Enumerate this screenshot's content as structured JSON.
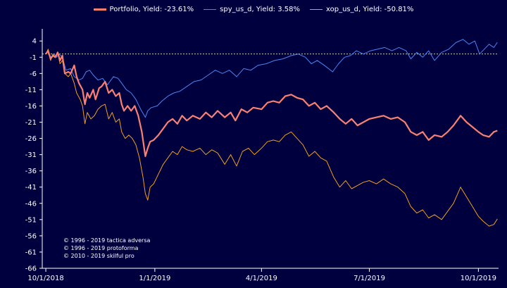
{
  "chart_data": {
    "type": "line",
    "title": "",
    "xlabel": "",
    "ylabel": "",
    "ylim": [
      -66,
      6
    ],
    "yticks": [
      4,
      -1,
      -6,
      -11,
      -16,
      -21,
      -26,
      -31,
      -36,
      -41,
      -46,
      -51,
      -56,
      -61,
      -66
    ],
    "xticks": [
      "10/1/2018",
      "1/1/2019",
      "4/1/2019",
      "7/1/2019",
      "10/1/2019"
    ],
    "xrange": [
      "2018-09-28",
      "2019-10-18"
    ],
    "reference_line_y": 0,
    "grid": false,
    "legend_position": "top",
    "series": [
      {
        "name": "Portfolio, Yield: -23.61%",
        "color": "#fa8072",
        "width": 2.2,
        "points": [
          [
            "2018-10-01",
            0
          ],
          [
            "2018-10-03",
            1
          ],
          [
            "2018-10-05",
            -1.5
          ],
          [
            "2018-10-07",
            -0.5
          ],
          [
            "2018-10-09",
            -1
          ],
          [
            "2018-10-11",
            0.5
          ],
          [
            "2018-10-13",
            -2
          ],
          [
            "2018-10-15",
            -0.5
          ],
          [
            "2018-10-17",
            -6
          ],
          [
            "2018-10-20",
            -5.5
          ],
          [
            "2018-10-22",
            -6
          ],
          [
            "2018-10-25",
            -3.5
          ],
          [
            "2018-10-27",
            -7
          ],
          [
            "2018-10-29",
            -9
          ],
          [
            "2018-11-01",
            -11
          ],
          [
            "2018-11-03",
            -15.5
          ],
          [
            "2018-11-05",
            -12
          ],
          [
            "2018-11-07",
            -13.5
          ],
          [
            "2018-11-10",
            -11
          ],
          [
            "2018-11-12",
            -14
          ],
          [
            "2018-11-15",
            -10.5
          ],
          [
            "2018-11-17",
            -10
          ],
          [
            "2018-11-20",
            -8.5
          ],
          [
            "2018-11-23",
            -12
          ],
          [
            "2018-11-26",
            -11
          ],
          [
            "2018-11-29",
            -13
          ],
          [
            "2018-12-02",
            -12
          ],
          [
            "2018-12-04",
            -15.5
          ],
          [
            "2018-12-06",
            -17.5
          ],
          [
            "2018-12-09",
            -16
          ],
          [
            "2018-12-12",
            -17.5
          ],
          [
            "2018-12-15",
            -16
          ],
          [
            "2018-12-18",
            -19
          ],
          [
            "2018-12-21",
            -24
          ],
          [
            "2018-12-24",
            -31.5
          ],
          [
            "2018-12-26",
            -29
          ],
          [
            "2018-12-28",
            -27
          ],
          [
            "2018-12-31",
            -26.5
          ],
          [
            "2019-01-04",
            -25
          ],
          [
            "2019-01-08",
            -23
          ],
          [
            "2019-01-12",
            -21
          ],
          [
            "2019-01-16",
            -20
          ],
          [
            "2019-01-20",
            -21.5
          ],
          [
            "2019-01-24",
            -19
          ],
          [
            "2019-01-28",
            -20.5
          ],
          [
            "2019-02-02",
            -19
          ],
          [
            "2019-02-08",
            -20
          ],
          [
            "2019-02-13",
            -18
          ],
          [
            "2019-02-18",
            -19.5
          ],
          [
            "2019-02-23",
            -17.5
          ],
          [
            "2019-03-01",
            -19.5
          ],
          [
            "2019-03-06",
            -18
          ],
          [
            "2019-03-10",
            -20.5
          ],
          [
            "2019-03-15",
            -17
          ],
          [
            "2019-03-20",
            -18
          ],
          [
            "2019-03-25",
            -16.5
          ],
          [
            "2019-04-01",
            -17
          ],
          [
            "2019-04-06",
            -15
          ],
          [
            "2019-04-11",
            -14.5
          ],
          [
            "2019-04-16",
            -15
          ],
          [
            "2019-04-21",
            -13
          ],
          [
            "2019-04-26",
            -12.5
          ],
          [
            "2019-05-01",
            -13.5
          ],
          [
            "2019-05-06",
            -14
          ],
          [
            "2019-05-11",
            -16
          ],
          [
            "2019-05-16",
            -15
          ],
          [
            "2019-05-21",
            -17
          ],
          [
            "2019-05-26",
            -16
          ],
          [
            "2019-06-01",
            -18
          ],
          [
            "2019-06-06",
            -20
          ],
          [
            "2019-06-11",
            -21.5
          ],
          [
            "2019-06-16",
            -20
          ],
          [
            "2019-06-21",
            -22
          ],
          [
            "2019-06-26",
            -21
          ],
          [
            "2019-07-01",
            -20
          ],
          [
            "2019-07-07",
            -19.5
          ],
          [
            "2019-07-13",
            -19
          ],
          [
            "2019-07-19",
            -20
          ],
          [
            "2019-07-25",
            -19.5
          ],
          [
            "2019-07-31",
            -21
          ],
          [
            "2019-08-05",
            -24
          ],
          [
            "2019-08-10",
            -25
          ],
          [
            "2019-08-15",
            -24
          ],
          [
            "2019-08-20",
            -26.5
          ],
          [
            "2019-08-25",
            -25
          ],
          [
            "2019-08-31",
            -25.5
          ],
          [
            "2019-09-05",
            -24
          ],
          [
            "2019-09-10",
            -22
          ],
          [
            "2019-09-16",
            -19
          ],
          [
            "2019-09-21",
            -21
          ],
          [
            "2019-09-26",
            -22.5
          ],
          [
            "2019-10-01",
            -24
          ],
          [
            "2019-10-05",
            -25
          ],
          [
            "2019-10-10",
            -25.5
          ],
          [
            "2019-10-14",
            -24
          ],
          [
            "2019-10-17",
            -23.6
          ]
        ]
      },
      {
        "name": "spy_us_d, Yield: 3.58%",
        "color": "#4b86f0",
        "width": 1,
        "points": [
          [
            "2018-10-01",
            0
          ],
          [
            "2018-10-03",
            1
          ],
          [
            "2018-10-05",
            -1
          ],
          [
            "2018-10-08",
            0
          ],
          [
            "2018-10-10",
            -1
          ],
          [
            "2018-10-12",
            0
          ],
          [
            "2018-10-15",
            -1
          ],
          [
            "2018-10-18",
            -5
          ],
          [
            "2018-10-22",
            -4.5
          ],
          [
            "2018-10-25",
            -7
          ],
          [
            "2018-10-29",
            -8
          ],
          [
            "2018-11-01",
            -7.5
          ],
          [
            "2018-11-04",
            -5.5
          ],
          [
            "2018-11-07",
            -5
          ],
          [
            "2018-11-10",
            -6.5
          ],
          [
            "2018-11-14",
            -8
          ],
          [
            "2018-11-18",
            -7.5
          ],
          [
            "2018-11-22",
            -9.5
          ],
          [
            "2018-11-27",
            -7
          ],
          [
            "2018-12-01",
            -7.5
          ],
          [
            "2018-12-04",
            -9
          ],
          [
            "2018-12-08",
            -11
          ],
          [
            "2018-12-12",
            -12
          ],
          [
            "2018-12-16",
            -14
          ],
          [
            "2018-12-20",
            -17
          ],
          [
            "2018-12-24",
            -19.5
          ],
          [
            "2018-12-26",
            -17.5
          ],
          [
            "2018-12-29",
            -16.5
          ],
          [
            "2019-01-03",
            -16
          ],
          [
            "2019-01-07",
            -14.5
          ],
          [
            "2019-01-12",
            -13
          ],
          [
            "2019-01-17",
            -12
          ],
          [
            "2019-01-22",
            -11.5
          ],
          [
            "2019-01-28",
            -10
          ],
          [
            "2019-02-03",
            -8.5
          ],
          [
            "2019-02-09",
            -8
          ],
          [
            "2019-02-15",
            -6.5
          ],
          [
            "2019-02-21",
            -5
          ],
          [
            "2019-02-27",
            -6
          ],
          [
            "2019-03-05",
            -5
          ],
          [
            "2019-03-11",
            -7
          ],
          [
            "2019-03-17",
            -4.5
          ],
          [
            "2019-03-23",
            -5
          ],
          [
            "2019-03-29",
            -3.5
          ],
          [
            "2019-04-05",
            -3
          ],
          [
            "2019-04-12",
            -2
          ],
          [
            "2019-04-19",
            -1.5
          ],
          [
            "2019-04-26",
            -0.5
          ],
          [
            "2019-05-02",
            0
          ],
          [
            "2019-05-08",
            -1
          ],
          [
            "2019-05-13",
            -3
          ],
          [
            "2019-05-18",
            -2
          ],
          [
            "2019-05-24",
            -3.5
          ],
          [
            "2019-05-31",
            -5.5
          ],
          [
            "2019-06-05",
            -3
          ],
          [
            "2019-06-10",
            -1
          ],
          [
            "2019-06-15",
            -0.5
          ],
          [
            "2019-06-20",
            1
          ],
          [
            "2019-06-26",
            0
          ],
          [
            "2019-07-02",
            1
          ],
          [
            "2019-07-08",
            1.5
          ],
          [
            "2019-07-14",
            2
          ],
          [
            "2019-07-20",
            1
          ],
          [
            "2019-07-26",
            2
          ],
          [
            "2019-08-01",
            1
          ],
          [
            "2019-08-05",
            -1.5
          ],
          [
            "2019-08-10",
            0.5
          ],
          [
            "2019-08-15",
            -1
          ],
          [
            "2019-08-20",
            1
          ],
          [
            "2019-08-25",
            -2
          ],
          [
            "2019-08-31",
            0.5
          ],
          [
            "2019-09-06",
            1.5
          ],
          [
            "2019-09-12",
            3.5
          ],
          [
            "2019-09-18",
            4.5
          ],
          [
            "2019-09-23",
            3
          ],
          [
            "2019-09-28",
            4
          ],
          [
            "2019-10-02",
            0
          ],
          [
            "2019-10-06",
            1.5
          ],
          [
            "2019-10-10",
            3
          ],
          [
            "2019-10-14",
            2
          ],
          [
            "2019-10-17",
            3.6
          ]
        ]
      },
      {
        "name": "xop_us_d, Yield: -50.81%",
        "color": "#f0a020",
        "width": 1,
        "points": [
          [
            "2018-10-01",
            0
          ],
          [
            "2018-10-03",
            1.5
          ],
          [
            "2018-10-05",
            -2
          ],
          [
            "2018-10-07",
            0
          ],
          [
            "2018-10-09",
            -1
          ],
          [
            "2018-10-11",
            0.5
          ],
          [
            "2018-10-13",
            -3
          ],
          [
            "2018-10-15",
            -2
          ],
          [
            "2018-10-17",
            -6
          ],
          [
            "2018-10-20",
            -7
          ],
          [
            "2018-10-22",
            -6
          ],
          [
            "2018-10-25",
            -9
          ],
          [
            "2018-10-27",
            -12
          ],
          [
            "2018-10-30",
            -14
          ],
          [
            "2018-11-01",
            -16
          ],
          [
            "2018-11-03",
            -21.5
          ],
          [
            "2018-11-05",
            -18
          ],
          [
            "2018-11-08",
            -20
          ],
          [
            "2018-11-11",
            -19
          ],
          [
            "2018-11-14",
            -17
          ],
          [
            "2018-11-17",
            -16
          ],
          [
            "2018-11-20",
            -15.5
          ],
          [
            "2018-11-23",
            -20
          ],
          [
            "2018-11-26",
            -18
          ],
          [
            "2018-11-29",
            -21
          ],
          [
            "2018-12-02",
            -20
          ],
          [
            "2018-12-04",
            -24
          ],
          [
            "2018-12-07",
            -26
          ],
          [
            "2018-12-10",
            -25
          ],
          [
            "2018-12-13",
            -26
          ],
          [
            "2018-12-16",
            -28
          ],
          [
            "2018-12-19",
            -32
          ],
          [
            "2018-12-22",
            -38
          ],
          [
            "2018-12-24",
            -43
          ],
          [
            "2018-12-26",
            -45
          ],
          [
            "2018-12-28",
            -41
          ],
          [
            "2018-12-31",
            -40
          ],
          [
            "2019-01-04",
            -37
          ],
          [
            "2019-01-08",
            -34
          ],
          [
            "2019-01-12",
            -32
          ],
          [
            "2019-01-16",
            -30
          ],
          [
            "2019-01-20",
            -31
          ],
          [
            "2019-01-24",
            -28.5
          ],
          [
            "2019-01-28",
            -29.5
          ],
          [
            "2019-02-02",
            -30
          ],
          [
            "2019-02-08",
            -29
          ],
          [
            "2019-02-13",
            -31
          ],
          [
            "2019-02-18",
            -29.5
          ],
          [
            "2019-02-23",
            -30.5
          ],
          [
            "2019-03-01",
            -34
          ],
          [
            "2019-03-06",
            -31
          ],
          [
            "2019-03-11",
            -34.5
          ],
          [
            "2019-03-16",
            -30
          ],
          [
            "2019-03-21",
            -29
          ],
          [
            "2019-03-26",
            -31
          ],
          [
            "2019-04-01",
            -29
          ],
          [
            "2019-04-06",
            -27
          ],
          [
            "2019-04-11",
            -26.5
          ],
          [
            "2019-04-16",
            -27
          ],
          [
            "2019-04-21",
            -25
          ],
          [
            "2019-04-26",
            -24
          ],
          [
            "2019-05-01",
            -26
          ],
          [
            "2019-05-06",
            -28
          ],
          [
            "2019-05-11",
            -31.5
          ],
          [
            "2019-05-16",
            -30
          ],
          [
            "2019-05-21",
            -32
          ],
          [
            "2019-05-26",
            -33
          ],
          [
            "2019-06-01",
            -38
          ],
          [
            "2019-06-06",
            -41
          ],
          [
            "2019-06-11",
            -39
          ],
          [
            "2019-06-16",
            -41.5
          ],
          [
            "2019-06-21",
            -40.5
          ],
          [
            "2019-06-26",
            -39.5
          ],
          [
            "2019-07-01",
            -39
          ],
          [
            "2019-07-07",
            -40
          ],
          [
            "2019-07-13",
            -38.5
          ],
          [
            "2019-07-19",
            -40
          ],
          [
            "2019-07-25",
            -41
          ],
          [
            "2019-07-31",
            -43
          ],
          [
            "2019-08-05",
            -47
          ],
          [
            "2019-08-10",
            -49
          ],
          [
            "2019-08-15",
            -48
          ],
          [
            "2019-08-20",
            -50.5
          ],
          [
            "2019-08-25",
            -49.5
          ],
          [
            "2019-08-31",
            -51
          ],
          [
            "2019-09-05",
            -48.5
          ],
          [
            "2019-09-10",
            -46
          ],
          [
            "2019-09-16",
            -41
          ],
          [
            "2019-09-21",
            -44
          ],
          [
            "2019-09-26",
            -47
          ],
          [
            "2019-10-01",
            -50
          ],
          [
            "2019-10-05",
            -51.5
          ],
          [
            "2019-10-10",
            -53
          ],
          [
            "2019-10-14",
            -52.5
          ],
          [
            "2019-10-17",
            -50.8
          ]
        ]
      }
    ]
  },
  "copyright": {
    "line1": "© 1996 - 2019 tactica adversa",
    "line2": "© 1996 - 2019 protoforma",
    "line3": "© 2010 - 2019 skilful pro"
  }
}
